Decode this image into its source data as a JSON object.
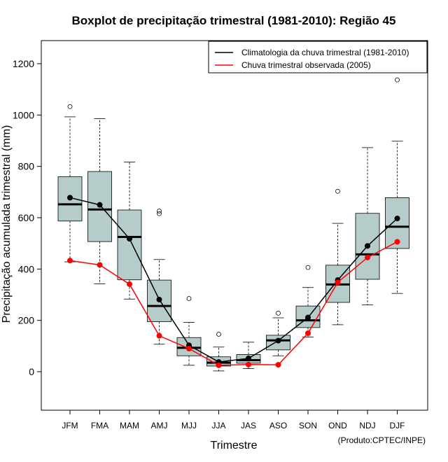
{
  "chart_data": {
    "type": "boxplot",
    "title": "Boxplot de precipitação trimestral (1981-2010): Região 45",
    "xlabel": "Trimestre",
    "ylabel": "Precipitação acumulada trimestral (mm)",
    "ylim": [
      -150,
      1290
    ],
    "yticks": [
      0,
      200,
      400,
      600,
      800,
      1000,
      1200
    ],
    "credit": "(Produto:CPTEC/INPE)",
    "categories": [
      "JFM",
      "FMA",
      "MAM",
      "AMJ",
      "MJJ",
      "JJA",
      "JAS",
      "ASO",
      "SON",
      "OND",
      "NDJ",
      "DJF"
    ],
    "boxes": [
      {
        "min": 428,
        "q1": 587,
        "median": 652,
        "q3": 760,
        "max": 993,
        "outliers": [
          1033
        ]
      },
      {
        "min": 342,
        "q1": 507,
        "median": 632,
        "q3": 780,
        "max": 986,
        "outliers": []
      },
      {
        "min": 283,
        "q1": 358,
        "median": 525,
        "q3": 630,
        "max": 817,
        "outliers": []
      },
      {
        "min": 107,
        "q1": 195,
        "median": 256,
        "q3": 357,
        "max": 437,
        "outliers": [
          616,
          626
        ]
      },
      {
        "min": 25,
        "q1": 62,
        "median": 93,
        "q3": 133,
        "max": 192,
        "outliers": [
          285
        ]
      },
      {
        "min": 3,
        "q1": 22,
        "median": 35,
        "q3": 58,
        "max": 96,
        "outliers": [
          146
        ]
      },
      {
        "min": 12,
        "q1": 33,
        "median": 45,
        "q3": 67,
        "max": 115,
        "outliers": []
      },
      {
        "min": 62,
        "q1": 85,
        "median": 122,
        "q3": 142,
        "max": 210,
        "outliers": [
          228
        ]
      },
      {
        "min": 135,
        "q1": 172,
        "median": 200,
        "q3": 256,
        "max": 328,
        "outliers": [
          406
        ]
      },
      {
        "min": 183,
        "q1": 270,
        "median": 340,
        "q3": 415,
        "max": 578,
        "outliers": [
          703
        ]
      },
      {
        "min": 260,
        "q1": 360,
        "median": 457,
        "q3": 617,
        "max": 873,
        "outliers": []
      },
      {
        "min": 305,
        "q1": 480,
        "median": 565,
        "q3": 678,
        "max": 898,
        "outliers": [
          1137
        ]
      }
    ],
    "series": [
      {
        "name": "Climatologia da chuva trimestral (1981-2010)",
        "color": "#000000",
        "values": [
          678,
          650,
          518,
          281,
          103,
          38,
          52,
          121,
          211,
          357,
          490,
          597
        ]
      },
      {
        "name": "Chuva trimestral observada (2005)",
        "color": "#ff0000",
        "values": [
          433,
          416,
          341,
          140,
          90,
          25,
          28,
          27,
          150,
          348,
          445,
          506
        ]
      }
    ],
    "box_color": "#b5cccb",
    "legend_position": "top-right"
  }
}
